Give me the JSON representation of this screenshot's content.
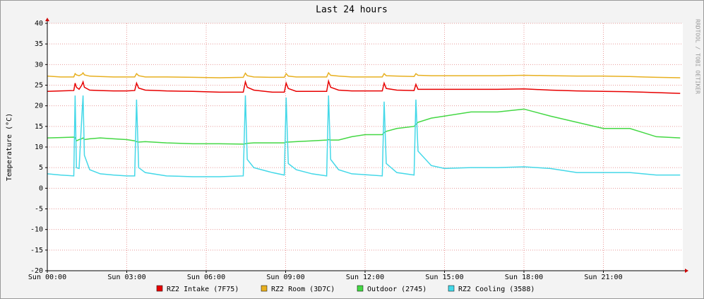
{
  "chart_data": {
    "type": "line",
    "title": "Last 24 hours",
    "y_label": "Temperature (°C)",
    "watermark": "RRDTOOL / TOBI OETIKER",
    "x": [
      0,
      0.5,
      1.0,
      1.05,
      1.1,
      1.2,
      1.3,
      1.35,
      1.4,
      1.6,
      2.0,
      2.5,
      3.0,
      3.3,
      3.37,
      3.45,
      3.7,
      4.5,
      5.5,
      6.5,
      7.4,
      7.48,
      7.55,
      7.8,
      8.5,
      8.95,
      9.02,
      9.1,
      9.4,
      10.0,
      10.55,
      10.62,
      10.7,
      11.0,
      11.5,
      12.0,
      12.65,
      12.72,
      12.8,
      13.2,
      13.85,
      13.92,
      14.0,
      14.5,
      15.0,
      16.0,
      17.0,
      18.0,
      19.0,
      20.0,
      21.0,
      22.0,
      22.5,
      23.0,
      23.9
    ],
    "xlim": [
      0,
      24
    ],
    "xticks": [
      {
        "value": 0,
        "label": "Sun 00:00"
      },
      {
        "value": 3,
        "label": "Sun 03:00"
      },
      {
        "value": 6,
        "label": "Sun 06:00"
      },
      {
        "value": 9,
        "label": "Sun 09:00"
      },
      {
        "value": 12,
        "label": "Sun 12:00"
      },
      {
        "value": 15,
        "label": "Sun 15:00"
      },
      {
        "value": 18,
        "label": "Sun 18:00"
      },
      {
        "value": 21,
        "label": "Sun 21:00"
      }
    ],
    "ylim": [
      -20,
      40
    ],
    "yticks": [
      -20,
      -15,
      -10,
      -5,
      0,
      5,
      10,
      15,
      20,
      25,
      30,
      35,
      40
    ],
    "grid": true,
    "series": [
      {
        "name": "RZ2 Intake (7F75)",
        "color": "#e80000",
        "values": [
          23.5,
          23.6,
          23.7,
          25.5,
          24.5,
          24,
          25,
          25.8,
          24.5,
          23.8,
          23.7,
          23.6,
          23.6,
          23.7,
          25.5,
          24.3,
          23.8,
          23.6,
          23.5,
          23.3,
          23.3,
          25.8,
          24.5,
          23.8,
          23.3,
          23.3,
          25.5,
          24.2,
          23.5,
          23.5,
          23.5,
          26,
          24.5,
          23.8,
          23.6,
          23.6,
          23.6,
          25.5,
          24.2,
          23.8,
          23.7,
          25.2,
          24,
          24,
          24,
          24,
          24,
          24.1,
          23.8,
          23.6,
          23.5,
          23.4,
          23.3,
          23.2,
          23
        ]
      },
      {
        "name": "RZ2 Room (3D7C)",
        "color": "#e8b020",
        "values": [
          27.2,
          27,
          27,
          27.8,
          27.5,
          27.3,
          27.6,
          28,
          27.5,
          27.2,
          27.1,
          27,
          27,
          27,
          27.8,
          27.3,
          27,
          27,
          26.9,
          26.8,
          26.9,
          27.9,
          27.3,
          27,
          26.9,
          26.9,
          27.8,
          27.2,
          27,
          27,
          27,
          28,
          27.4,
          27.2,
          27,
          27,
          27,
          27.8,
          27.3,
          27.2,
          27.1,
          27.8,
          27.4,
          27.3,
          27.3,
          27.3,
          27.3,
          27.4,
          27.3,
          27.2,
          27.2,
          27.1,
          27,
          26.9,
          26.8
        ]
      },
      {
        "name": "Outdoor (2745)",
        "color": "#44d844",
        "values": [
          12.2,
          12.3,
          12.4,
          12.3,
          11.5,
          11.8,
          12,
          12.2,
          11.8,
          12,
          12.2,
          12,
          11.8,
          11.5,
          11.3,
          11.2,
          11.3,
          11.0,
          10.8,
          10.8,
          10.7,
          10.8,
          10.9,
          11,
          11,
          11,
          11.2,
          11.2,
          11.3,
          11.5,
          11.7,
          11.8,
          11.7,
          11.7,
          12.5,
          13,
          13,
          13.5,
          13.8,
          14.5,
          15,
          15.5,
          16,
          17,
          17.5,
          18.5,
          18.5,
          19.2,
          17.5,
          16,
          14.5,
          14.5,
          13.5,
          12.5,
          12.2
        ]
      },
      {
        "name": "RZ2 Cooling (3588)",
        "color": "#44d8e8",
        "values": [
          3.5,
          3.2,
          3.0,
          22.5,
          5,
          4.8,
          17,
          22.5,
          8,
          4.5,
          3.5,
          3.2,
          3.0,
          3.0,
          21.5,
          5,
          3.8,
          3.0,
          2.8,
          2.8,
          3.0,
          22.5,
          7,
          5,
          3.8,
          3.2,
          22,
          6,
          4.5,
          3.5,
          3.0,
          22.5,
          7,
          4.5,
          3.5,
          3.3,
          3.0,
          21,
          6,
          3.8,
          3.2,
          21.5,
          9,
          5.5,
          4.8,
          5,
          5,
          5.2,
          4.8,
          3.8,
          3.8,
          3.8,
          3.5,
          3.2,
          3.2
        ]
      }
    ]
  }
}
